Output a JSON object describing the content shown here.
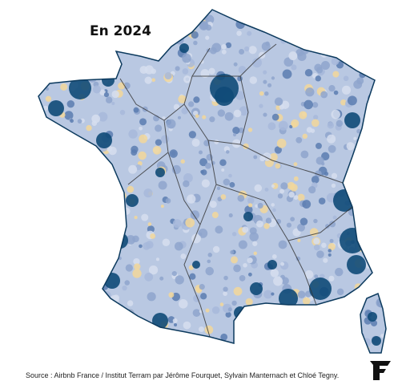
{
  "title": "En 2024",
  "source": "Source : Airbnb France / Institut Terram par Jérôme Fourquet, Sylvain Manternach et Chloé Tegny."
}
